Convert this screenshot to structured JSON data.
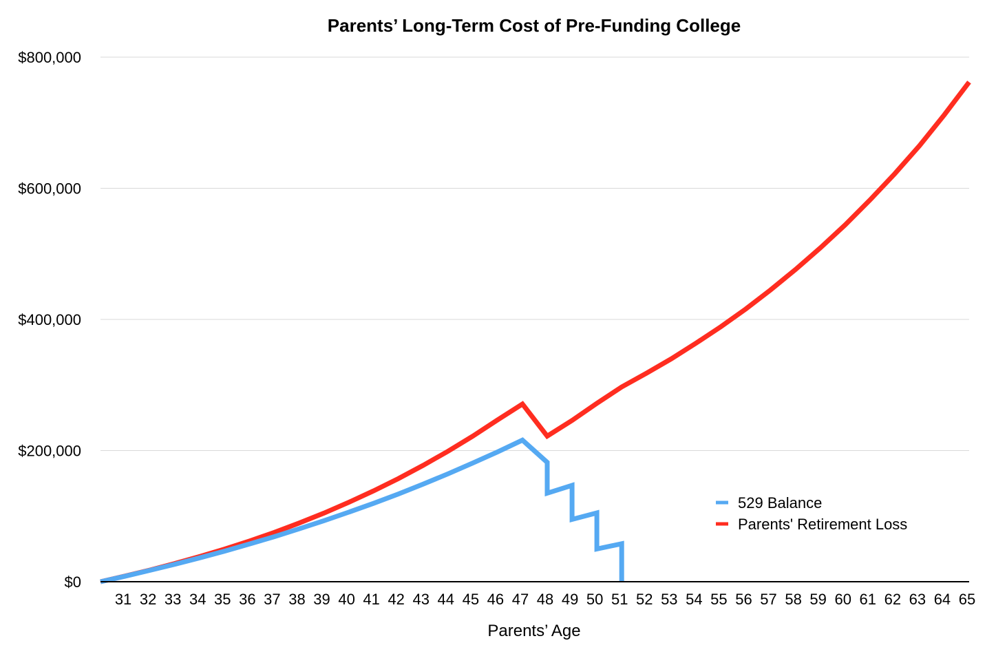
{
  "chart_data": {
    "type": "line",
    "title": "Parents’ Long-Term Cost of Pre-Funding College",
    "xlabel": "Parents’ Age",
    "ylabel": "",
    "xlim": [
      30,
      65
    ],
    "ylim": [
      0,
      800000
    ],
    "yticks": [
      0,
      200000,
      400000,
      600000,
      800000
    ],
    "ytick_labels": [
      "$0",
      "$200,000",
      "$400,000",
      "$600,000",
      "$800,000"
    ],
    "xticks": [
      31,
      32,
      33,
      34,
      35,
      36,
      37,
      38,
      39,
      40,
      41,
      42,
      43,
      44,
      45,
      46,
      47,
      48,
      49,
      50,
      51,
      52,
      53,
      54,
      55,
      56,
      57,
      58,
      59,
      60,
      61,
      62,
      63,
      64,
      65
    ],
    "xtick_labels": [
      "31",
      "32",
      "33",
      "34",
      "35",
      "36",
      "37",
      "38",
      "39",
      "40",
      "41",
      "42",
      "43",
      "44",
      "45",
      "46",
      "47",
      "48",
      "49",
      "50",
      "51",
      "52",
      "53",
      "54",
      "55",
      "56",
      "57",
      "58",
      "59",
      "60",
      "61",
      "62",
      "63",
      "64",
      "65"
    ],
    "grid": true,
    "legend_position": "right",
    "series": [
      {
        "name": "529 Balance",
        "color": "#55a9f2",
        "points": [
          [
            30,
            0
          ],
          [
            31,
            8500
          ],
          [
            32,
            17400
          ],
          [
            33,
            26700
          ],
          [
            34,
            36400
          ],
          [
            35,
            46600
          ],
          [
            36,
            57400
          ],
          [
            37,
            68700
          ],
          [
            38,
            80600
          ],
          [
            39,
            93000
          ],
          [
            40,
            106000
          ],
          [
            41,
            119500
          ],
          [
            42,
            133800
          ],
          [
            43,
            148800
          ],
          [
            44,
            164500
          ],
          [
            45,
            181000
          ],
          [
            46,
            198000
          ],
          [
            47,
            216000
          ],
          [
            48,
            182000
          ],
          [
            48,
            135000
          ],
          [
            49,
            147000
          ],
          [
            49,
            95000
          ],
          [
            50,
            105000
          ],
          [
            50,
            50000
          ],
          [
            51,
            58000
          ],
          [
            51,
            0
          ]
        ]
      },
      {
        "name": "Parents' Retirement Loss",
        "color": "#ff2d20",
        "points": [
          [
            30,
            0
          ],
          [
            31,
            8700
          ],
          [
            32,
            17900
          ],
          [
            33,
            27800
          ],
          [
            34,
            38400
          ],
          [
            35,
            49800
          ],
          [
            36,
            62000
          ],
          [
            37,
            75200
          ],
          [
            38,
            89400
          ],
          [
            39,
            104600
          ],
          [
            40,
            121000
          ],
          [
            41,
            138500
          ],
          [
            42,
            157300
          ],
          [
            43,
            177400
          ],
          [
            44,
            198900
          ],
          [
            45,
            222000
          ],
          [
            46,
            246800
          ],
          [
            47,
            271000
          ],
          [
            48,
            222000
          ],
          [
            49,
            246000
          ],
          [
            50,
            272000
          ],
          [
            51,
            297000
          ],
          [
            52,
            318000
          ],
          [
            53,
            340000
          ],
          [
            54,
            364000
          ],
          [
            55,
            389000
          ],
          [
            56,
            416000
          ],
          [
            57,
            445000
          ],
          [
            58,
            476000
          ],
          [
            59,
            509000
          ],
          [
            60,
            544000
          ],
          [
            61,
            582000
          ],
          [
            62,
            622000
          ],
          [
            63,
            665000
          ],
          [
            64,
            712000
          ],
          [
            65,
            762000
          ]
        ]
      }
    ]
  }
}
